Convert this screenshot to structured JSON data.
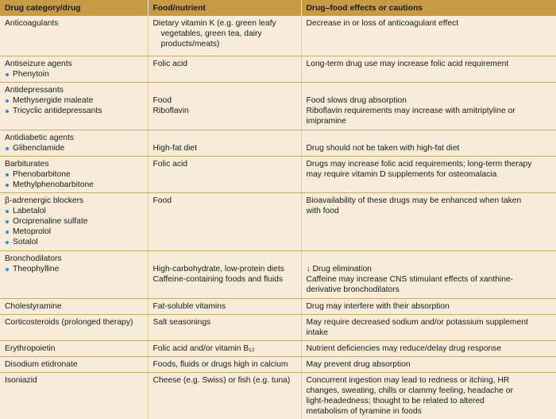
{
  "headers": [
    "Drug category/drug",
    "Food/nutrient",
    "Drug–food effects or cautions"
  ],
  "rows": [
    {
      "drug": [
        "Anticoagulants"
      ],
      "food": [
        "Dietary vitamin K (e.g. green leafy",
        "vegetables, green tea, dairy",
        "products/meats)"
      ],
      "effect": [
        "Decrease in or loss of anticoagulant effect"
      ]
    },
    {
      "drug": [
        "Antiseizure agents",
        "Phenytoin"
      ],
      "food": [
        "Folic acid"
      ],
      "effect": [
        "Long-term drug use may increase folic acid requirement"
      ]
    },
    {
      "drug": [
        "Antidepressants",
        "Methysergide maleate",
        "Tricyclic antidepressants"
      ],
      "food": [
        "Food",
        "Riboflavin"
      ],
      "effect": [
        "Food slows drug absorption",
        "Riboflavin requirements may increase with amitriptyline or",
        "imipramine"
      ]
    },
    {
      "drug": [
        "Antidiabetic agents",
        "Glibenclamide"
      ],
      "food": [
        "High-fat diet"
      ],
      "effect": [
        "Drug should not be taken with high-fat diet"
      ]
    },
    {
      "drug": [
        "Barbiturates",
        "Phenobarbitone",
        "Methylphenobarbitone"
      ],
      "food": [
        "Folic acid"
      ],
      "effect": [
        "Drugs may increase folic acid requirements; long-term therapy",
        "may require vitamin D supplements for osteomalacia"
      ]
    },
    {
      "drug": [
        "β-adrenergic blockers",
        "Labetalol",
        "Orciprenaline sulfate",
        "Metoprolol",
        "Sotalol"
      ],
      "food": [
        "Food"
      ],
      "effect": [
        "Bioavailability of these drugs may be enhanced when taken",
        "with food"
      ]
    },
    {
      "drug": [
        "Bronchodilators",
        "Theophylline"
      ],
      "food": [
        "High-carbohydrate, low-protein diets",
        "Caffeine-containing foods and fluids"
      ],
      "effect": [
        "↓ Drug elimination",
        "Caffeine may increase CNS stimulant effects of xanthine-",
        "derivative bronchodilators"
      ]
    },
    {
      "drug": [
        "Cholestyramine"
      ],
      "food": [
        "Fat-soluble vitamins"
      ],
      "effect": [
        "Drug may interfere with their absorption"
      ]
    },
    {
      "drug": [
        "Corticosteroids (prolonged therapy)"
      ],
      "food": [
        "Salt seasonings"
      ],
      "effect": [
        "May require decreased sodium and/or potassium supplement",
        "intake"
      ]
    },
    {
      "drug": [
        "Erythropoietin"
      ],
      "food": [
        "Folic acid and/or vitamin B₁₂"
      ],
      "effect": [
        "Nutrient deficiencies may reduce/delay drug response"
      ]
    },
    {
      "drug": [
        "Disodium etidronate"
      ],
      "food": [
        "Foods, fluids or drugs high in calcium"
      ],
      "effect": [
        "May prevent drug absorption"
      ]
    },
    {
      "drug": [
        "Isoniazid"
      ],
      "food": [
        "Cheese (e.g. Swiss) or fish (e.g. tuna)"
      ],
      "effect": [
        "Concurrent ingestion may lead to redness or itching, HR",
        "changes, sweating, chills or clammy feeling, headache or",
        "light-headedness; thought to be related to altered",
        "metabolism of tyramine in foods"
      ]
    }
  ]
}
